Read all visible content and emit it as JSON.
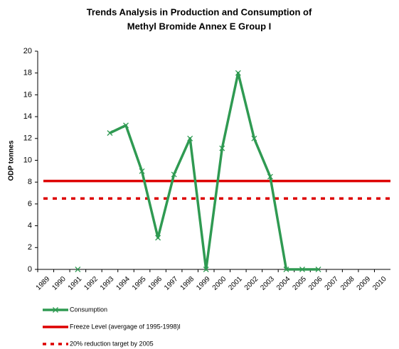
{
  "chart_data": {
    "type": "line",
    "title": [
      "Trends Analysis in Production and Consumption of",
      "Methyl Bromide Annex E Group I"
    ],
    "y_label": "ODP tonnes",
    "categories": [
      "1989",
      "1990",
      "1991",
      "1992",
      "1993",
      "1994",
      "1995",
      "1996",
      "1997",
      "1998",
      "1999",
      "2000",
      "2001",
      "2002",
      "2003",
      "2004",
      "2005",
      "2006",
      "2007",
      "2008",
      "2009",
      "2010"
    ],
    "series": [
      {
        "name": "Consumption",
        "color": "#2f9a52",
        "values": [
          null,
          null,
          0,
          null,
          12.5,
          13.2,
          9,
          2.9,
          8.7,
          12,
          0,
          11.1,
          18,
          12,
          8.5,
          0,
          0,
          0,
          null,
          null,
          null,
          null
        ]
      }
    ],
    "reference_lines": [
      {
        "name": "Freeze Level (avergage of 1995-1998)l",
        "color": "#dd0000",
        "value": 8.1,
        "style": "solid"
      },
      {
        "name": "20% reduction target by 2005",
        "color": "#dd0000",
        "value": 6.5,
        "style": "dashed"
      }
    ],
    "ylim": [
      0,
      20
    ],
    "yticks": [
      0,
      2,
      4,
      6,
      8,
      10,
      12,
      14,
      16,
      18,
      20
    ],
    "grid": false
  }
}
